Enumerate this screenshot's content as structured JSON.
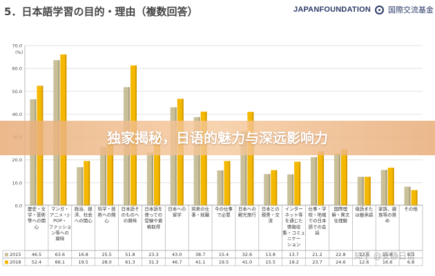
{
  "header": {
    "title": "5．日本語学習の目的・理由（複数回答）",
    "logo_text": "JAPANFOUNDATION",
    "logo_jp": "国際交流基金"
  },
  "banner": {
    "text": "独家揭秘，日语的魅力与深远影响力"
  },
  "watermark": {
    "text": "知乎 @安静日语"
  },
  "colors": {
    "series_2015": "#c9c09a",
    "series_2018": "#f5b800",
    "grid": "#d6d6d6",
    "banner": "#e8ac78"
  },
  "chart_data": {
    "type": "bar",
    "y_unit": "(%)",
    "ylim": [
      0,
      70
    ],
    "yticks": [
      "0.0",
      "10.0",
      "20.0",
      "30.0",
      "40.0",
      "50.0",
      "60.0",
      "70.0"
    ],
    "grid": true,
    "categories": [
      [
        "歴史・文",
        "学・芸術",
        "等への関",
        "心"
      ],
      [
        "マンガ・",
        "アニメ・J-",
        "POP・",
        "ファッショ",
        "ン等への",
        "興味"
      ],
      [
        "政治、経",
        "済、社会",
        "への関心"
      ],
      [
        "科学・技",
        "術への関",
        "心"
      ],
      [
        "日本語そ",
        "のものへ",
        "の興味"
      ],
      [
        "日本語を",
        "使っての",
        "受験や資",
        "格取得"
      ],
      [
        "日本への",
        "留学"
      ],
      [
        "将来の仕",
        "事・就職"
      ],
      [
        "今の仕事",
        "で必要"
      ],
      [
        "日本への",
        "観光旅行"
      ],
      [
        "日本との",
        "親善・交",
        "流"
      ],
      [
        "インター",
        "ネット等",
        "を通じた",
        "情報収",
        "集・コミュ",
        "ニケー",
        "ション"
      ],
      [
        "仕事・学",
        "校・地域",
        "での日本",
        "語での会",
        "話"
      ],
      [
        "国際理",
        "解・異文",
        "化理解"
      ],
      [
        "母語また",
        "は継承語"
      ],
      [
        "家族、親",
        "族等の奨",
        "め"
      ],
      [
        "その他"
      ]
    ],
    "series": [
      {
        "name": "2015",
        "values": [
          46.5,
          63.6,
          16.8,
          25.5,
          51.8,
          23.3,
          43.0,
          38.7,
          15.4,
          32.6,
          13.8,
          13.7,
          21.2,
          22.8,
          12.6,
          15.6,
          8.3
        ]
      },
      {
        "name": "2018",
        "values": [
          52.4,
          66.1,
          19.5,
          28.0,
          61.3,
          31.3,
          46.7,
          41.1,
          19.5,
          41.0,
          15.5,
          19.2,
          23.7,
          24.6,
          12.6,
          16.6,
          6.8
        ]
      }
    ]
  }
}
